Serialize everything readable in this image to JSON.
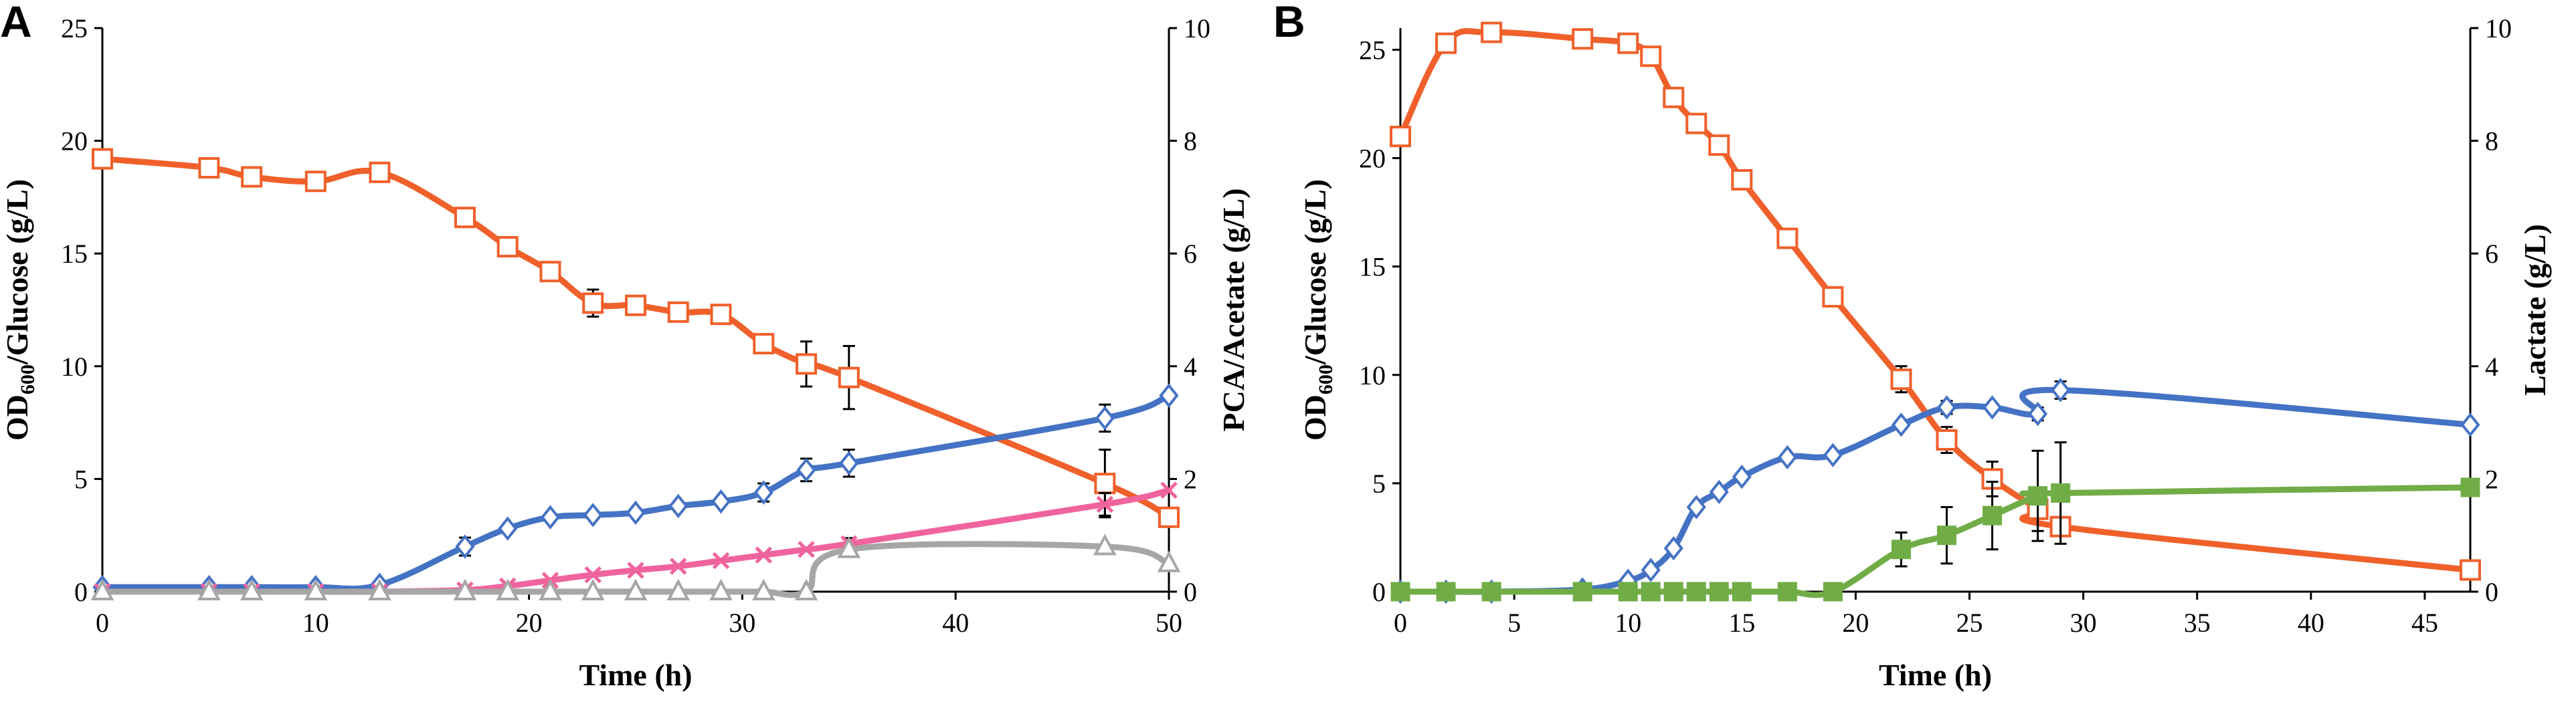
{
  "chart_data": [
    {
      "panel": "A",
      "type": "line",
      "xlabel": "Time (h)",
      "ylabel_left_main": "OD",
      "ylabel_left_sub": "600",
      "ylabel_left_rest": "/Glucose (g/L)",
      "ylabel_right": "PCA/Acetate (g/L)",
      "xlim": [
        0,
        50
      ],
      "ylim_left": [
        0,
        25
      ],
      "ylim_right": [
        0,
        10
      ],
      "xticks": [
        0,
        10,
        20,
        30,
        40,
        50
      ],
      "yticks_left": [
        0,
        5,
        10,
        15,
        20,
        25
      ],
      "yticks_right": [
        0,
        2,
        4,
        6,
        8,
        10
      ],
      "series": [
        {
          "name": "Glucose",
          "axis": "left",
          "color": "#F0602A",
          "marker": "square-open",
          "x": [
            0,
            5,
            7,
            10,
            13,
            17,
            19,
            21,
            23,
            25,
            27,
            29,
            31,
            33,
            35,
            47,
            50
          ],
          "y": [
            19.2,
            18.8,
            18.4,
            18.2,
            18.6,
            16.6,
            15.3,
            14.2,
            12.8,
            12.7,
            12.4,
            12.3,
            11.0,
            10.1,
            9.5,
            4.8,
            3.3
          ],
          "err": [
            0,
            0,
            0,
            0,
            0,
            0,
            0,
            0,
            0.6,
            0,
            0.4,
            0.4,
            0,
            1.0,
            1.4,
            1.5,
            0
          ]
        },
        {
          "name": "OD600",
          "axis": "left",
          "color": "#4472C4",
          "marker": "diamond-open",
          "x": [
            0,
            5,
            7,
            10,
            13,
            17,
            19,
            21,
            23,
            25,
            27,
            29,
            31,
            33,
            35,
            47,
            50
          ],
          "y": [
            0.2,
            0.2,
            0.2,
            0.2,
            0.3,
            2.0,
            2.8,
            3.3,
            3.4,
            3.5,
            3.8,
            4.0,
            4.4,
            5.4,
            5.7,
            7.7,
            8.7
          ],
          "err": [
            0,
            0,
            0,
            0,
            0,
            0.4,
            0,
            0,
            0,
            0,
            0,
            0,
            0.4,
            0.5,
            0.6,
            0.6,
            0
          ]
        },
        {
          "name": "PCA",
          "axis": "right",
          "color": "#F0649E",
          "marker": "cross",
          "x": [
            0,
            5,
            7,
            10,
            13,
            17,
            19,
            21,
            23,
            25,
            27,
            29,
            31,
            33,
            35,
            47,
            50
          ],
          "y": [
            0,
            0,
            0,
            0,
            0,
            0.03,
            0.1,
            0.2,
            0.3,
            0.38,
            0.45,
            0.55,
            0.65,
            0.75,
            0.85,
            1.55,
            1.8
          ],
          "err": [
            0,
            0,
            0,
            0,
            0,
            0,
            0,
            0,
            0,
            0,
            0,
            0,
            0,
            0,
            0.1,
            0.2,
            0
          ]
        },
        {
          "name": "Acetate",
          "axis": "right",
          "color": "#A6A6A6",
          "marker": "triangle-open",
          "x": [
            0,
            5,
            7,
            10,
            13,
            17,
            19,
            21,
            23,
            25,
            27,
            29,
            31,
            33,
            35,
            47,
            50
          ],
          "y": [
            0,
            0,
            0,
            0,
            0,
            0,
            0,
            0,
            0,
            0,
            0,
            0,
            0,
            0,
            0.75,
            0.8,
            0.5
          ],
          "err": [
            0,
            0,
            0,
            0,
            0,
            0,
            0,
            0,
            0,
            0,
            0,
            0,
            0,
            0,
            0,
            0,
            0
          ]
        }
      ]
    },
    {
      "panel": "B",
      "type": "line",
      "xlabel": "Time (h)",
      "ylabel_left_main": "OD",
      "ylabel_left_sub": "600",
      "ylabel_left_rest": "/Glucose (g/L)",
      "ylabel_right": "Lactate (g/L)",
      "xlim": [
        0,
        47
      ],
      "ylim_left": [
        0,
        26
      ],
      "ylim_right": [
        0,
        10
      ],
      "xticks": [
        0,
        5,
        10,
        15,
        20,
        25,
        30,
        35,
        40,
        45
      ],
      "yticks_left": [
        0,
        5,
        10,
        15,
        20,
        25
      ],
      "yticks_right": [
        0,
        2,
        4,
        6,
        8,
        10
      ],
      "series": [
        {
          "name": "Glucose",
          "axis": "left",
          "color": "#F0602A",
          "marker": "square-open",
          "x": [
            0,
            2,
            4,
            8,
            10,
            11,
            12,
            13,
            14,
            15,
            17,
            19,
            22,
            24,
            26,
            28,
            29,
            47
          ],
          "y": [
            21.0,
            25.3,
            25.8,
            25.5,
            25.3,
            24.7,
            22.8,
            21.6,
            20.6,
            19.0,
            16.3,
            13.6,
            9.8,
            7.0,
            5.2,
            3.8,
            3.0,
            1.0
          ],
          "err": [
            0,
            0,
            0,
            0,
            0,
            0,
            0,
            0,
            0,
            0,
            0,
            0,
            0.6,
            0.6,
            0.8,
            1.0,
            0,
            0
          ]
        },
        {
          "name": "OD600",
          "axis": "left",
          "color": "#4472C4",
          "marker": "diamond-open",
          "x": [
            0,
            2,
            4,
            8,
            10,
            11,
            12,
            13,
            14,
            15,
            17,
            19,
            22,
            24,
            26,
            28,
            29,
            47
          ],
          "y": [
            0,
            0,
            0,
            0.1,
            0.5,
            1.0,
            2.0,
            3.9,
            4.6,
            5.3,
            6.2,
            6.3,
            7.7,
            8.5,
            8.5,
            8.2,
            9.3,
            7.7
          ],
          "err": [
            0,
            0,
            0,
            0,
            0,
            0,
            0,
            0,
            0,
            0,
            0,
            0,
            0,
            0.3,
            0,
            0.3,
            0.4,
            0
          ]
        },
        {
          "name": "Lactate",
          "axis": "right",
          "color": "#70AD47",
          "marker": "square-filled",
          "x": [
            0,
            2,
            4,
            8,
            10,
            11,
            12,
            13,
            14,
            15,
            17,
            19,
            22,
            24,
            26,
            28,
            29,
            47
          ],
          "y": [
            0,
            0,
            0,
            0,
            0,
            0,
            0,
            0,
            0,
            0,
            0,
            0,
            0.75,
            1.0,
            1.35,
            1.7,
            1.75,
            1.85
          ],
          "err": [
            0,
            0,
            0,
            0,
            0,
            0,
            0,
            0,
            0,
            0,
            0,
            0,
            0.3,
            0.5,
            0.6,
            0.8,
            0.9,
            0
          ]
        }
      ]
    }
  ]
}
